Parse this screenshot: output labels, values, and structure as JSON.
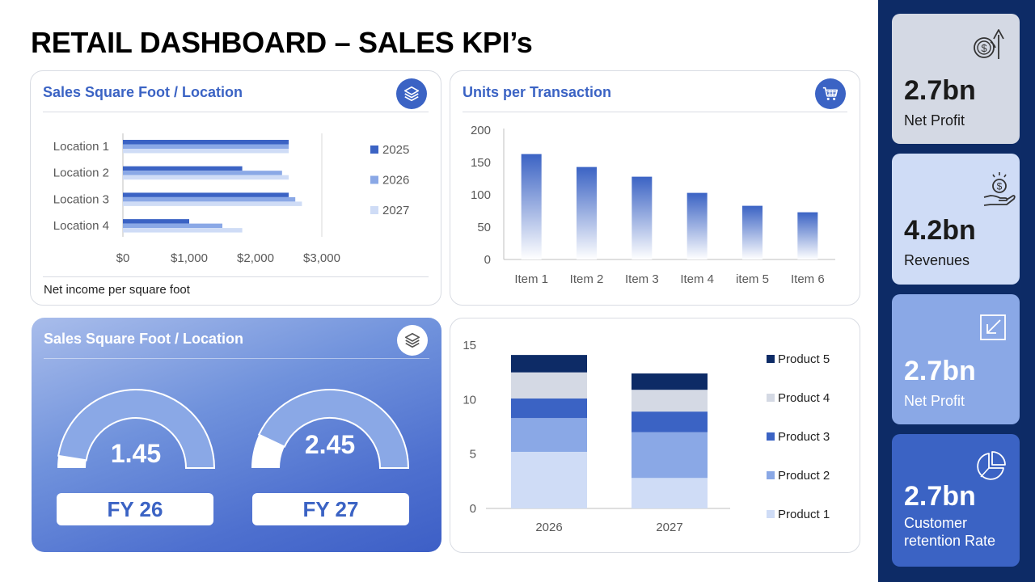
{
  "page_title": "RETAIL DASHBOARD – SALES KPI’s",
  "colors": {
    "accent": "#3b63c4",
    "dark_navy": "#0d2b66",
    "series_2025": "#3b63c4",
    "series_2026": "#8aa8e6",
    "series_2027": "#cfdcf6"
  },
  "sales_sqft": {
    "title": "Sales Square Foot / Location",
    "footnote": "Net income per square foot",
    "icon": "layers-icon"
  },
  "units_per_transaction": {
    "title": "Units per Transaction",
    "icon": "shopping-cart-icon"
  },
  "gauge_card": {
    "title": "Sales Square Foot / Location",
    "icon": "layers-icon",
    "gauges": [
      {
        "value_label": "1.45",
        "fy_label": "FY 26",
        "fraction": 0.95
      },
      {
        "value_label": "2.45",
        "fy_label": "FY 27",
        "fraction": 0.86
      }
    ]
  },
  "kpis": [
    {
      "value": "2.7bn",
      "label": "Net Profit",
      "icon": "dollar-coin-up-arrow-icon",
      "bg": "#d4d9e4",
      "fg": "#1a1a1a"
    },
    {
      "value": "4.2bn",
      "label": "Revenues",
      "icon": "hand-coin-icon",
      "bg": "#cfdcf6",
      "fg": "#1a1a1a"
    },
    {
      "value": "2.7bn",
      "label": "Net Profit",
      "icon": "arrow-down-left-box-icon",
      "bg": "#8aa8e6",
      "fg": "#ffffff"
    },
    {
      "value": "2.7bn",
      "label": "Customer retention Rate",
      "icon": "pie-chart-icon",
      "bg": "#3b63c4",
      "fg": "#ffffff"
    }
  ],
  "chart_data": [
    {
      "type": "bar",
      "orientation": "horizontal",
      "title": "Sales Square Foot / Location",
      "categories": [
        "Location 1",
        "Location 2",
        "Location 3",
        "Location 4"
      ],
      "series": [
        {
          "name": "2025",
          "values": [
            2500,
            1800,
            2500,
            1000
          ]
        },
        {
          "name": "2026",
          "values": [
            2500,
            2400,
            2600,
            1500
          ]
        },
        {
          "name": "2027",
          "values": [
            2500,
            2500,
            2700,
            1800
          ]
        }
      ],
      "x_ticks": [
        "$0",
        "$1,000",
        "$2,000",
        "$3,000"
      ],
      "xlim": [
        0,
        3000
      ],
      "legend": "right"
    },
    {
      "type": "bar",
      "title": "Units per Transaction",
      "categories": [
        "Item 1",
        "Item 2",
        "Item 3",
        "Item 4",
        "item 5",
        "Item 6"
      ],
      "values": [
        163,
        143,
        128,
        103,
        83,
        73
      ],
      "y_ticks": [
        "200",
        "150",
        "100",
        "50",
        "0"
      ],
      "ylim": [
        0,
        200
      ]
    },
    {
      "type": "bar",
      "stacked": true,
      "categories": [
        "2026",
        "2027"
      ],
      "series": [
        {
          "name": "Product 1",
          "values": [
            5.2,
            2.8
          ]
        },
        {
          "name": "Product 2",
          "values": [
            3.1,
            4.2
          ]
        },
        {
          "name": "Product 3",
          "values": [
            1.8,
            1.9
          ]
        },
        {
          "name": "Product 4",
          "values": [
            2.4,
            2.0
          ]
        },
        {
          "name": "Product 5",
          "values": [
            1.6,
            1.5
          ]
        }
      ],
      "series_colors": [
        "#cfdcf6",
        "#8aa8e6",
        "#3b63c4",
        "#d4d9e4",
        "#0d2b66"
      ],
      "y_ticks": [
        "15",
        "10",
        "5",
        "0"
      ],
      "ylim": [
        0,
        15
      ],
      "legend": "right"
    }
  ]
}
